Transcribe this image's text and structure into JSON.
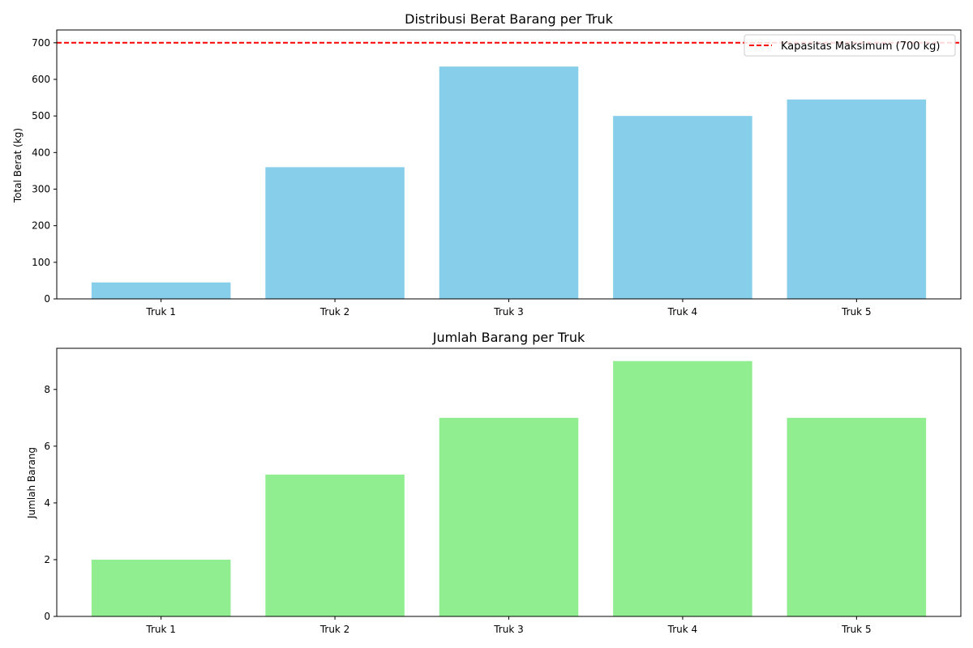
{
  "chart_data": [
    {
      "type": "bar",
      "title": "Distribusi Berat Barang per Truk",
      "xlabel": "",
      "ylabel": "Total Berat (kg)",
      "categories": [
        "Truk 1",
        "Truk 2",
        "Truk 3",
        "Truk 4",
        "Truk 5"
      ],
      "values": [
        45,
        360,
        635,
        500,
        545
      ],
      "ylim": [
        0,
        735
      ],
      "yticks": [
        0,
        100,
        200,
        300,
        400,
        500,
        600,
        700
      ],
      "bar_color": "#87ceeb",
      "reference_line": {
        "value": 700,
        "label": "Kapasitas Maksimum (700 kg)",
        "color": "#ff0000",
        "style": "dashed"
      },
      "legend_placement": "top-right",
      "grid": false
    },
    {
      "type": "bar",
      "title": "Jumlah Barang per Truk",
      "xlabel": "",
      "ylabel": "Jumlah Barang",
      "categories": [
        "Truk 1",
        "Truk 2",
        "Truk 3",
        "Truk 4",
        "Truk 5"
      ],
      "values": [
        2,
        5,
        7,
        9,
        7
      ],
      "ylim": [
        0,
        9.45
      ],
      "yticks": [
        0,
        2,
        4,
        6,
        8
      ],
      "bar_color": "#90ee90",
      "grid": false
    }
  ]
}
